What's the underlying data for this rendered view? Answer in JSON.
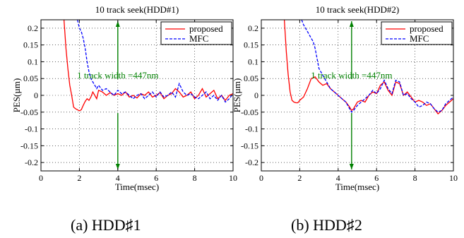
{
  "chart_data": [
    {
      "type": "line",
      "title": "10 track seek(HDD#1)",
      "xlabel": "Time(msec)",
      "ylabel": "PES(µm)",
      "xlim": [
        0,
        10
      ],
      "ylim": [
        -0.225,
        0.225
      ],
      "xticks": [
        "0",
        "2",
        "4",
        "6",
        "8",
        "10"
      ],
      "yticks": [
        "0.2",
        "0.15",
        "0.1",
        "0.05",
        "0",
        "-0.05",
        "-0.1",
        "-0.15",
        "-0.2"
      ],
      "grid": true,
      "legend": "top-right",
      "annotation": "1 track width =447nm",
      "marker_x": 4,
      "series": [
        {
          "name": "proposed",
          "color": "#ff0000",
          "style": "solid",
          "x": [
            1.2,
            1.3,
            1.4,
            1.5,
            1.6,
            1.7,
            1.8,
            1.9,
            2.0,
            2.1,
            2.2,
            2.3,
            2.4,
            2.5,
            2.6,
            2.7,
            2.8,
            2.9,
            3.0,
            3.2,
            3.4,
            3.6,
            3.8,
            4.0,
            4.2,
            4.4,
            4.6,
            4.8,
            5.0,
            5.2,
            5.4,
            5.6,
            5.8,
            6.0,
            6.2,
            6.4,
            6.6,
            6.8,
            7.0,
            7.2,
            7.4,
            7.6,
            7.8,
            8.0,
            8.2,
            8.4,
            8.6,
            8.8,
            9.0,
            9.2,
            9.4,
            9.6,
            9.8,
            10.0
          ],
          "y": [
            0.225,
            0.14,
            0.08,
            0.03,
            0.0,
            -0.035,
            -0.04,
            -0.043,
            -0.046,
            -0.043,
            -0.03,
            -0.018,
            -0.01,
            -0.015,
            -0.005,
            0.01,
            0.0,
            -0.01,
            0.015,
            0.01,
            0.0,
            0.008,
            0.0,
            0.005,
            0.0,
            0.01,
            -0.005,
            0.0,
            -0.008,
            0.005,
            0.0,
            0.01,
            -0.005,
            0.0,
            0.008,
            -0.01,
            0.0,
            0.005,
            0.02,
            0.01,
            -0.005,
            0.0,
            0.01,
            -0.01,
            0.0,
            0.02,
            -0.005,
            0.005,
            0.015,
            -0.01,
            0.0,
            -0.015,
            0.0,
            0.005
          ]
        },
        {
          "name": "MFC",
          "color": "#0000ff",
          "style": "dashed",
          "x": [
            1.9,
            2.0,
            2.1,
            2.2,
            2.3,
            2.4,
            2.5,
            2.6,
            2.7,
            2.8,
            2.9,
            3.0,
            3.2,
            3.4,
            3.6,
            3.8,
            4.0,
            4.2,
            4.4,
            4.6,
            4.8,
            5.0,
            5.2,
            5.4,
            5.6,
            5.8,
            6.0,
            6.2,
            6.4,
            6.6,
            6.8,
            7.0,
            7.2,
            7.4,
            7.6,
            7.8,
            8.0,
            8.2,
            8.4,
            8.6,
            8.8,
            9.0,
            9.2,
            9.4,
            9.6,
            9.8,
            10.0
          ],
          "y": [
            0.225,
            0.2,
            0.19,
            0.17,
            0.14,
            0.1,
            0.07,
            0.05,
            0.04,
            0.03,
            0.02,
            0.03,
            0.015,
            0.02,
            0.01,
            0.0,
            0.015,
            0.005,
            0.01,
            0.0,
            -0.01,
            0.0,
            0.005,
            -0.01,
            0.0,
            0.01,
            -0.005,
            0.01,
            -0.005,
            0.0,
            0.01,
            -0.005,
            0.035,
            0.01,
            0.0,
            0.005,
            -0.005,
            -0.01,
            0.0,
            0.01,
            -0.01,
            0.0,
            -0.015,
            0.0,
            -0.02,
            -0.01,
            0.005
          ]
        }
      ]
    },
    {
      "type": "line",
      "title": "10 track seek(HDD#2)",
      "xlabel": "Time(msec)",
      "ylabel": "PES(µm)",
      "xlim": [
        0,
        10
      ],
      "ylim": [
        -0.225,
        0.225
      ],
      "xticks": [
        "0",
        "2",
        "4",
        "6",
        "8",
        "10"
      ],
      "yticks": [
        "0.2",
        "0.15",
        "0.1",
        "0.05",
        "0",
        "-0.05",
        "-0.1",
        "-0.15",
        "-0.2"
      ],
      "grid": true,
      "legend": "top-right",
      "annotation": "1 track width =447nm",
      "marker_x": 4.7,
      "series": [
        {
          "name": "proposed",
          "color": "#ff0000",
          "style": "solid",
          "x": [
            1.2,
            1.3,
            1.4,
            1.5,
            1.6,
            1.7,
            1.8,
            1.9,
            2.0,
            2.2,
            2.4,
            2.6,
            2.8,
            3.0,
            3.2,
            3.4,
            3.6,
            3.8,
            4.0,
            4.2,
            4.4,
            4.6,
            4.7,
            4.8,
            5.0,
            5.2,
            5.4,
            5.6,
            5.8,
            6.0,
            6.2,
            6.4,
            6.6,
            6.8,
            7.0,
            7.2,
            7.4,
            7.6,
            7.8,
            8.0,
            8.2,
            8.4,
            8.6,
            8.8,
            9.0,
            9.2,
            9.4,
            9.6,
            9.8,
            10.0
          ],
          "y": [
            0.225,
            0.13,
            0.06,
            0.01,
            -0.015,
            -0.02,
            -0.022,
            -0.022,
            -0.015,
            -0.005,
            0.02,
            0.05,
            0.055,
            0.04,
            0.03,
            0.035,
            0.02,
            0.01,
            0.0,
            -0.01,
            -0.02,
            -0.035,
            -0.045,
            -0.04,
            -0.02,
            -0.015,
            -0.02,
            0.0,
            0.01,
            0.005,
            0.03,
            0.04,
            0.015,
            0.0,
            0.04,
            0.035,
            0.0,
            0.01,
            -0.005,
            -0.02,
            -0.015,
            -0.02,
            -0.03,
            -0.025,
            -0.04,
            -0.055,
            -0.045,
            -0.03,
            -0.02,
            -0.01
          ]
        },
        {
          "name": "MFC",
          "color": "#0000ff",
          "style": "dashed",
          "x": [
            2.1,
            2.2,
            2.3,
            2.4,
            2.5,
            2.6,
            2.7,
            2.8,
            2.9,
            3.0,
            3.2,
            3.4,
            3.6,
            3.8,
            4.0,
            4.2,
            4.4,
            4.6,
            4.7,
            4.8,
            5.0,
            5.2,
            5.4,
            5.6,
            5.8,
            6.0,
            6.2,
            6.4,
            6.6,
            6.8,
            7.0,
            7.2,
            7.4,
            7.6,
            7.8,
            8.0,
            8.2,
            8.4,
            8.6,
            8.8,
            9.0,
            9.2,
            9.4,
            9.6,
            9.8,
            10.0
          ],
          "y": [
            0.225,
            0.21,
            0.2,
            0.19,
            0.18,
            0.17,
            0.16,
            0.14,
            0.11,
            0.08,
            0.06,
            0.04,
            0.02,
            0.01,
            0.0,
            -0.01,
            -0.02,
            -0.04,
            -0.05,
            -0.045,
            -0.03,
            -0.02,
            -0.01,
            0.0,
            0.015,
            0.005,
            0.02,
            0.045,
            0.02,
            0.005,
            0.045,
            0.04,
            0.0,
            0.005,
            -0.01,
            -0.02,
            -0.035,
            -0.03,
            -0.02,
            -0.025,
            -0.04,
            -0.05,
            -0.045,
            -0.025,
            -0.015,
            -0.005
          ]
        }
      ]
    }
  ],
  "captions": [
    "(a) HDD♯1",
    "(b) HDD♯2"
  ]
}
